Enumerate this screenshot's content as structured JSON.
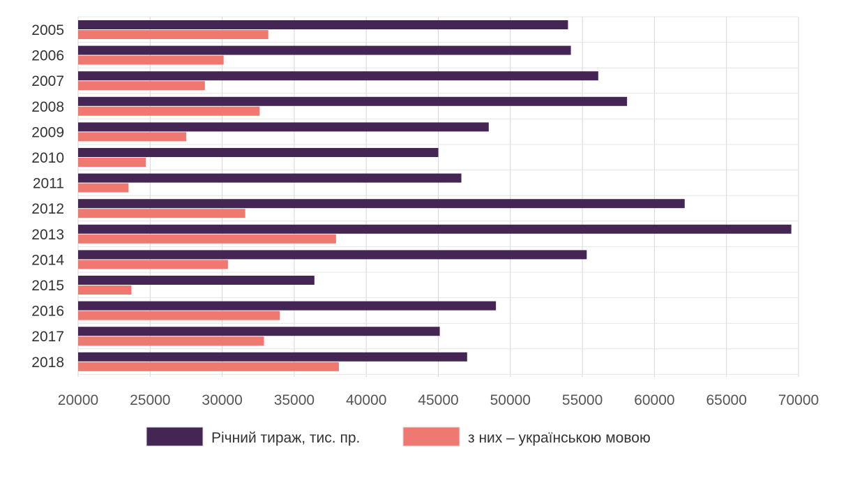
{
  "chart_data": {
    "type": "bar",
    "orientation": "horizontal",
    "categories": [
      "2005",
      "2006",
      "2007",
      "2008",
      "2009",
      "2010",
      "2011",
      "2012",
      "2013",
      "2014",
      "2015",
      "2016",
      "2017",
      "2018"
    ],
    "series": [
      {
        "name": "Річний тираж,  тис. пр.",
        "color": "#452553",
        "values": [
          54000,
          54200,
          56100,
          58100,
          48500,
          45000,
          46600,
          62100,
          69500,
          55300,
          36400,
          49000,
          45100,
          47000
        ]
      },
      {
        "name": "з них – українською мовою",
        "color": "#ef7970",
        "values": [
          33200,
          30100,
          28800,
          32600,
          27500,
          24700,
          23500,
          31600,
          37900,
          30400,
          23700,
          34000,
          32900,
          38100
        ]
      }
    ],
    "xlim": [
      20000,
      70000
    ],
    "x_ticks": [
      20000,
      25000,
      30000,
      35000,
      40000,
      45000,
      50000,
      55000,
      60000,
      65000,
      70000
    ],
    "grid": true,
    "legend_position": "bottom"
  }
}
